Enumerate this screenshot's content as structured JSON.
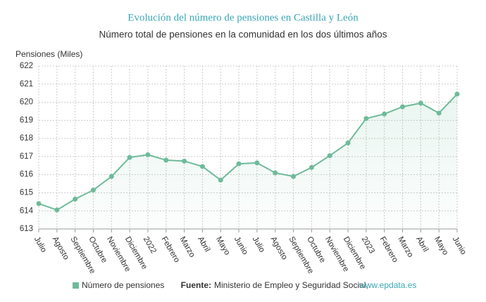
{
  "chart_data": {
    "type": "line",
    "title": "Evolución del número de pensiones en Castilla y León",
    "subtitle": "Número total de pensiones en la comunidad en los dos últimos años",
    "y_label": "Pensiones (Miles)",
    "categories": [
      "Julio",
      "Agosto",
      "Septiembre",
      "Octubre",
      "Noviembre",
      "Diciembre",
      "2022",
      "Febrero",
      "Marzo",
      "Abril",
      "Mayo",
      "Junio",
      "Julio",
      "Agosto",
      "Septiembre",
      "Octubre",
      "Noviembre",
      "Diciembre",
      "2023",
      "Febrero",
      "Marzo",
      "Abril",
      "Mayo",
      "Junio"
    ],
    "series": [
      {
        "name": "Número de pensiones",
        "color": "#6dbb9a",
        "values": [
          614.4,
          614.05,
          614.65,
          615.15,
          615.9,
          616.95,
          617.1,
          616.8,
          616.75,
          616.45,
          615.7,
          616.6,
          616.65,
          616.1,
          615.9,
          616.4,
          617.05,
          617.75,
          619.1,
          619.35,
          619.75,
          619.95,
          619.4,
          620.45
        ]
      }
    ],
    "ylim": [
      613,
      622
    ],
    "yticks": [
      613,
      614,
      615,
      616,
      617,
      618,
      619,
      620,
      621,
      622
    ],
    "grid": true,
    "legend": "bottom",
    "source": {
      "label": "Fuente:",
      "text": "Ministerio de Empleo y Seguridad Social,",
      "link": "www.epdata.es"
    }
  }
}
